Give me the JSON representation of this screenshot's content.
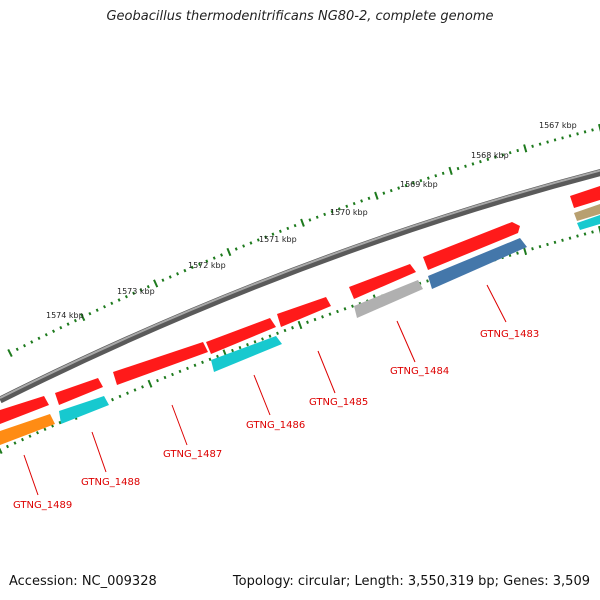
{
  "title": "Geobacillus thermodenitrificans NG80-2, complete genome",
  "footer": {
    "accession": "Accession: NC_009328",
    "stats": "Topology: circular; Length: 3,550,319 bp; Genes: 3,509"
  },
  "scale_labels": [
    "1567 kbp",
    "1568 kbp",
    "1569 kbp",
    "1570 kbp",
    "1571 kbp",
    "1572 kbp",
    "1573 kbp",
    "1574 kbp"
  ],
  "gene_labels": [
    "GTNG_1483",
    "GTNG_1484",
    "GTNG_1485",
    "GTNG_1486",
    "GTNG_1487",
    "GTNG_1488",
    "GTNG_1489"
  ],
  "colors": {
    "backbone": "#808080",
    "gene_red": "#ff1a1a",
    "gene_cyan": "#17c9cf",
    "gene_blue": "#4477aa",
    "gene_gray": "#b0b0b0",
    "gene_orange": "#ff8c14",
    "gene_tan": "#b8a070",
    "tick_green": "#1d7a1d",
    "label_red": "#dd0000"
  }
}
